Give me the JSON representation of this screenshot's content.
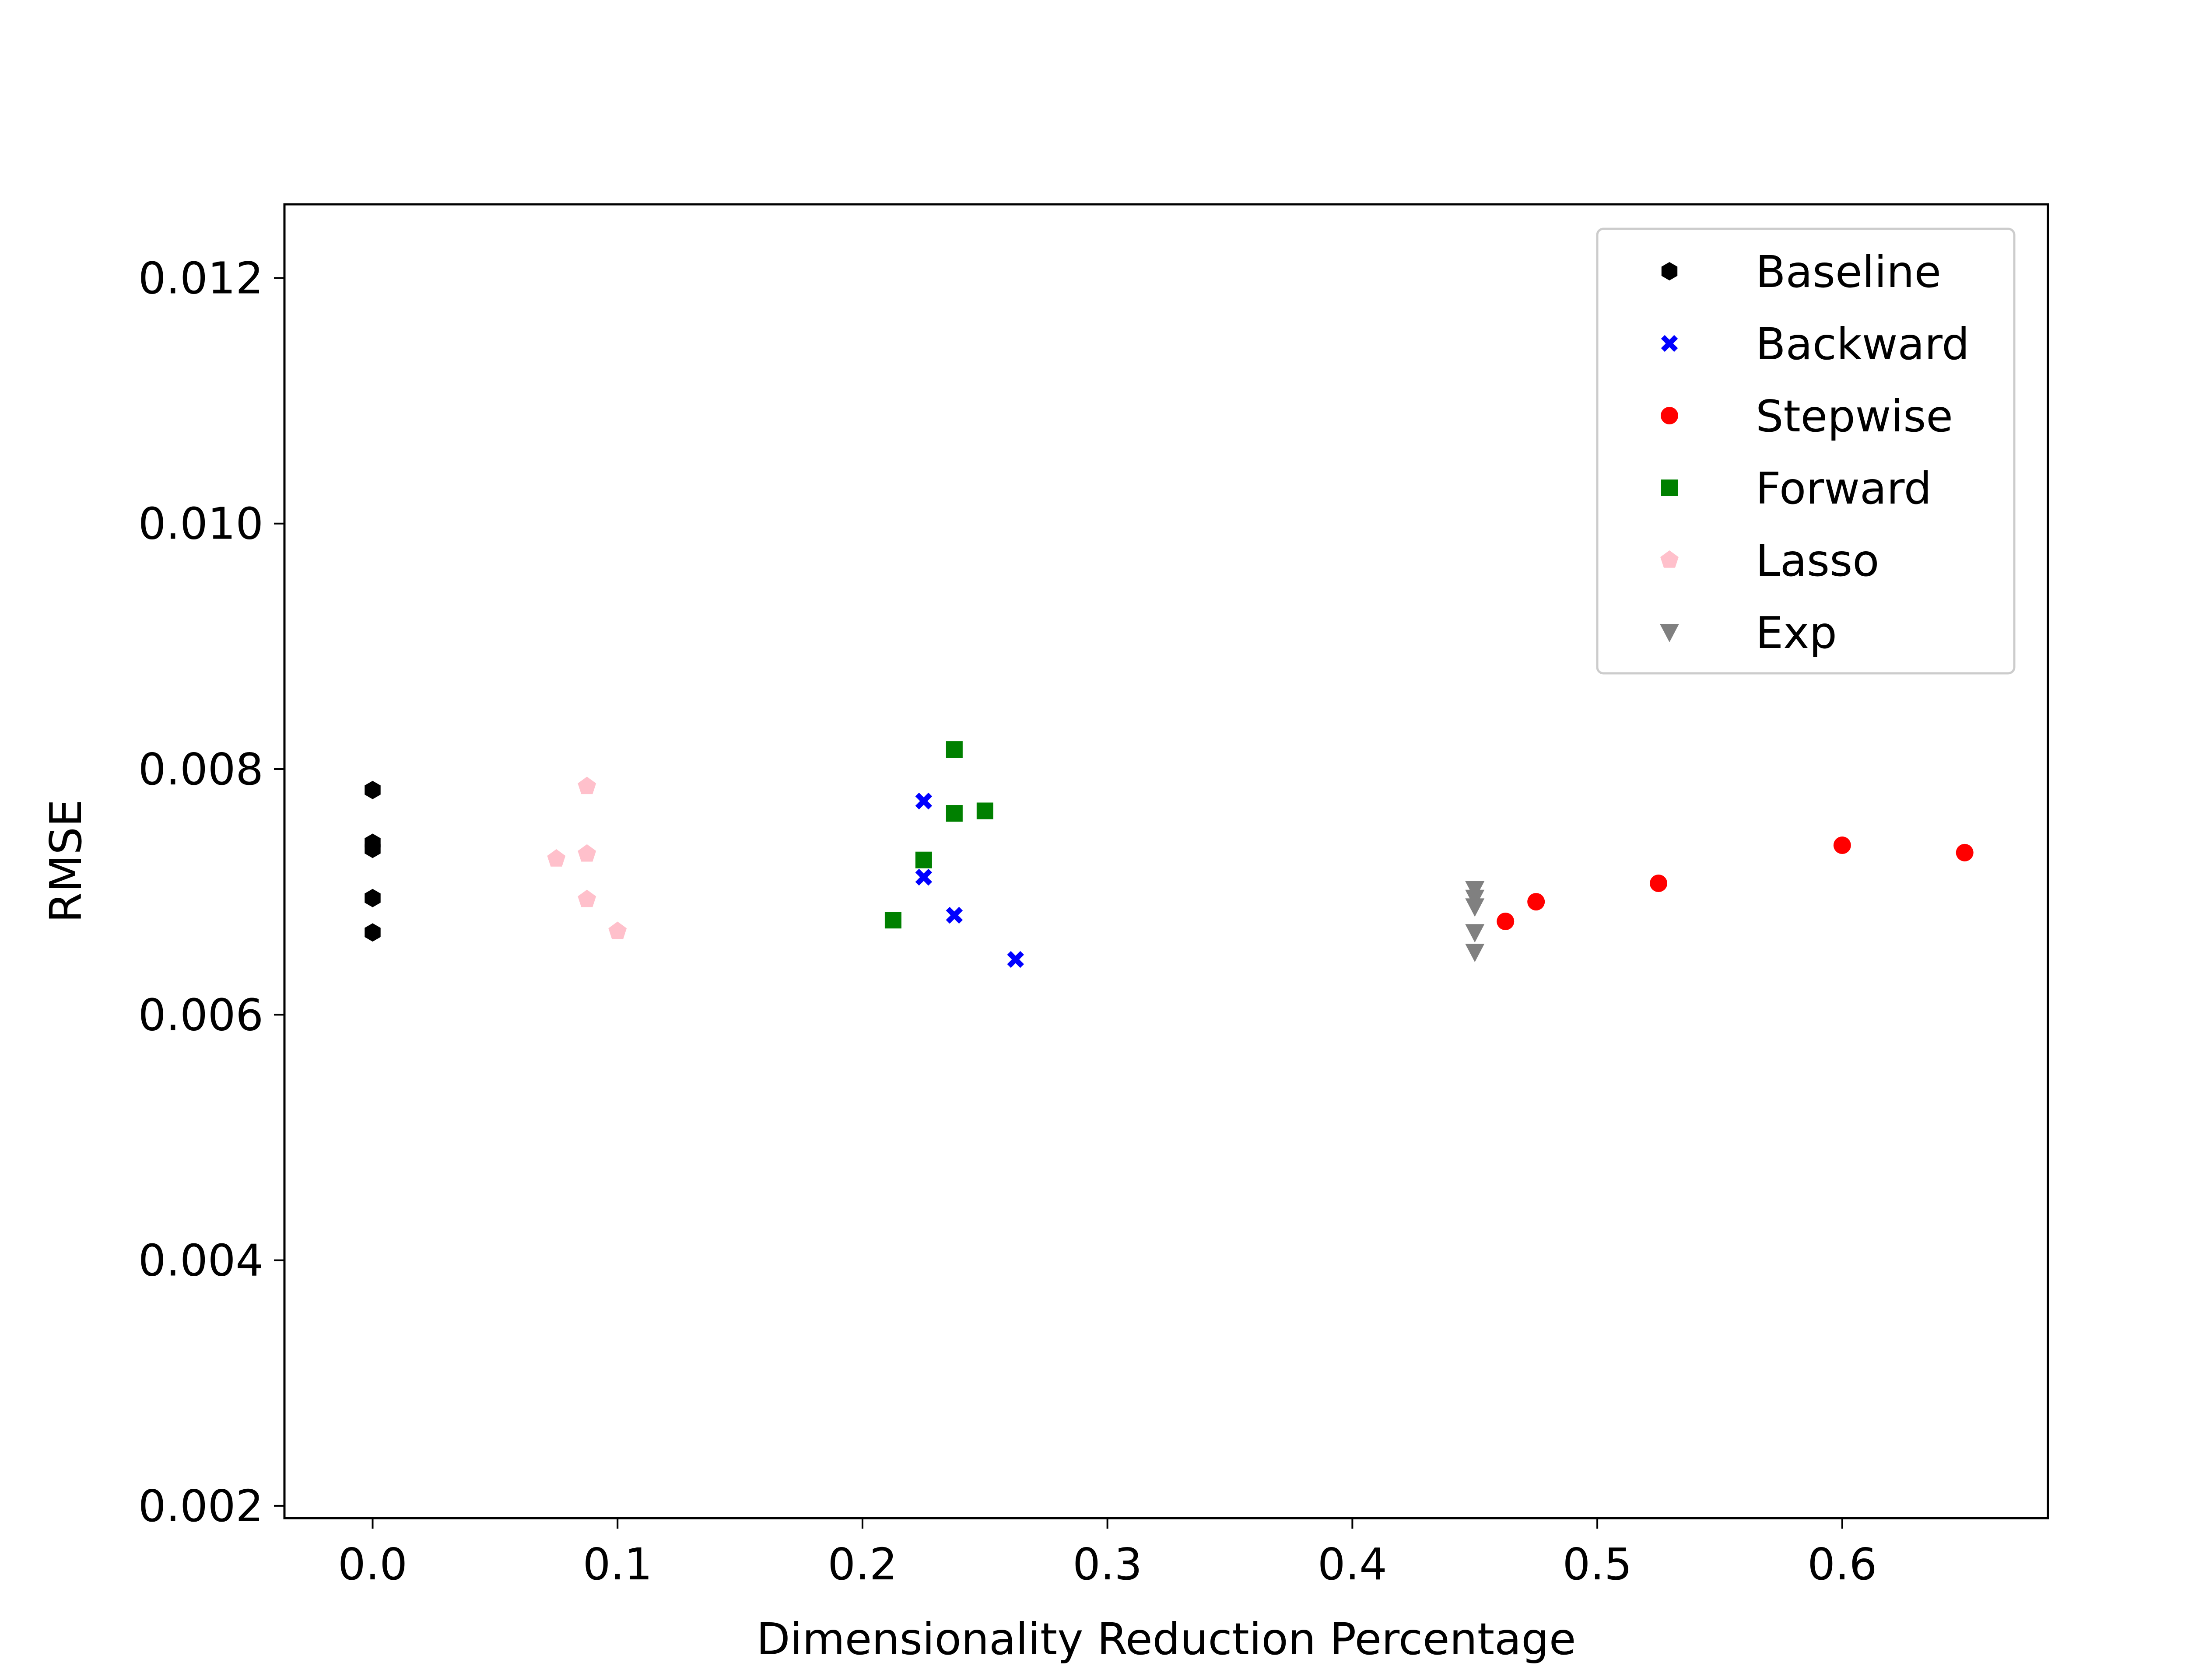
{
  "chart_data": {
    "type": "scatter",
    "title": "",
    "xlabel": "Dimensionality Reduction Percentage",
    "ylabel": "RMSE",
    "xlim": [
      -0.036,
      0.684
    ],
    "ylim": [
      0.0019,
      0.0126
    ],
    "xticks": [
      0.0,
      0.1,
      0.2,
      0.3,
      0.4,
      0.5,
      0.6
    ],
    "xtick_labels": [
      "0.0",
      "0.1",
      "0.2",
      "0.3",
      "0.4",
      "0.5",
      "0.6"
    ],
    "yticks": [
      0.002,
      0.004,
      0.006,
      0.008,
      0.01,
      0.012
    ],
    "ytick_labels": [
      "0.002",
      "0.004",
      "0.006",
      "0.008",
      "0.010",
      "0.012"
    ],
    "grid": false,
    "legend_position": "top-right",
    "series": [
      {
        "name": "Baseline",
        "marker": "hexagon",
        "color": "#000000",
        "points": [
          [
            0.0,
            0.00783
          ],
          [
            0.0,
            0.0074
          ],
          [
            0.0,
            0.00735
          ],
          [
            0.0,
            0.00695
          ],
          [
            0.0,
            0.00667
          ]
        ]
      },
      {
        "name": "Backward",
        "marker": "x",
        "color": "#0000ff",
        "points": [
          [
            0.225,
            0.00774
          ],
          [
            0.225,
            0.00712
          ],
          [
            0.2375,
            0.00681
          ],
          [
            0.2625,
            0.00645
          ]
        ]
      },
      {
        "name": "Stepwise",
        "marker": "circle",
        "color": "#ff0000",
        "points": [
          [
            0.4625,
            0.00676
          ],
          [
            0.475,
            0.00692
          ],
          [
            0.525,
            0.00707
          ],
          [
            0.6,
            0.00738
          ],
          [
            0.65,
            0.00732
          ]
        ]
      },
      {
        "name": "Forward",
        "marker": "square",
        "color": "#008000",
        "points": [
          [
            0.2375,
            0.00816
          ],
          [
            0.2375,
            0.00764
          ],
          [
            0.25,
            0.00766
          ],
          [
            0.225,
            0.00726
          ],
          [
            0.2125,
            0.00677
          ]
        ]
      },
      {
        "name": "Lasso",
        "marker": "pentagon",
        "color": "#ffc0cb",
        "points": [
          [
            0.0875,
            0.00786
          ],
          [
            0.0875,
            0.00731
          ],
          [
            0.075,
            0.00727
          ],
          [
            0.0875,
            0.00694
          ],
          [
            0.1,
            0.00668
          ]
        ]
      },
      {
        "name": "Exp",
        "marker": "triangle-down",
        "color": "#808080",
        "points": [
          [
            0.45,
            0.00702
          ],
          [
            0.45,
            0.00695
          ],
          [
            0.45,
            0.00688
          ],
          [
            0.45,
            0.00667
          ],
          [
            0.45,
            0.00651
          ]
        ]
      }
    ]
  }
}
